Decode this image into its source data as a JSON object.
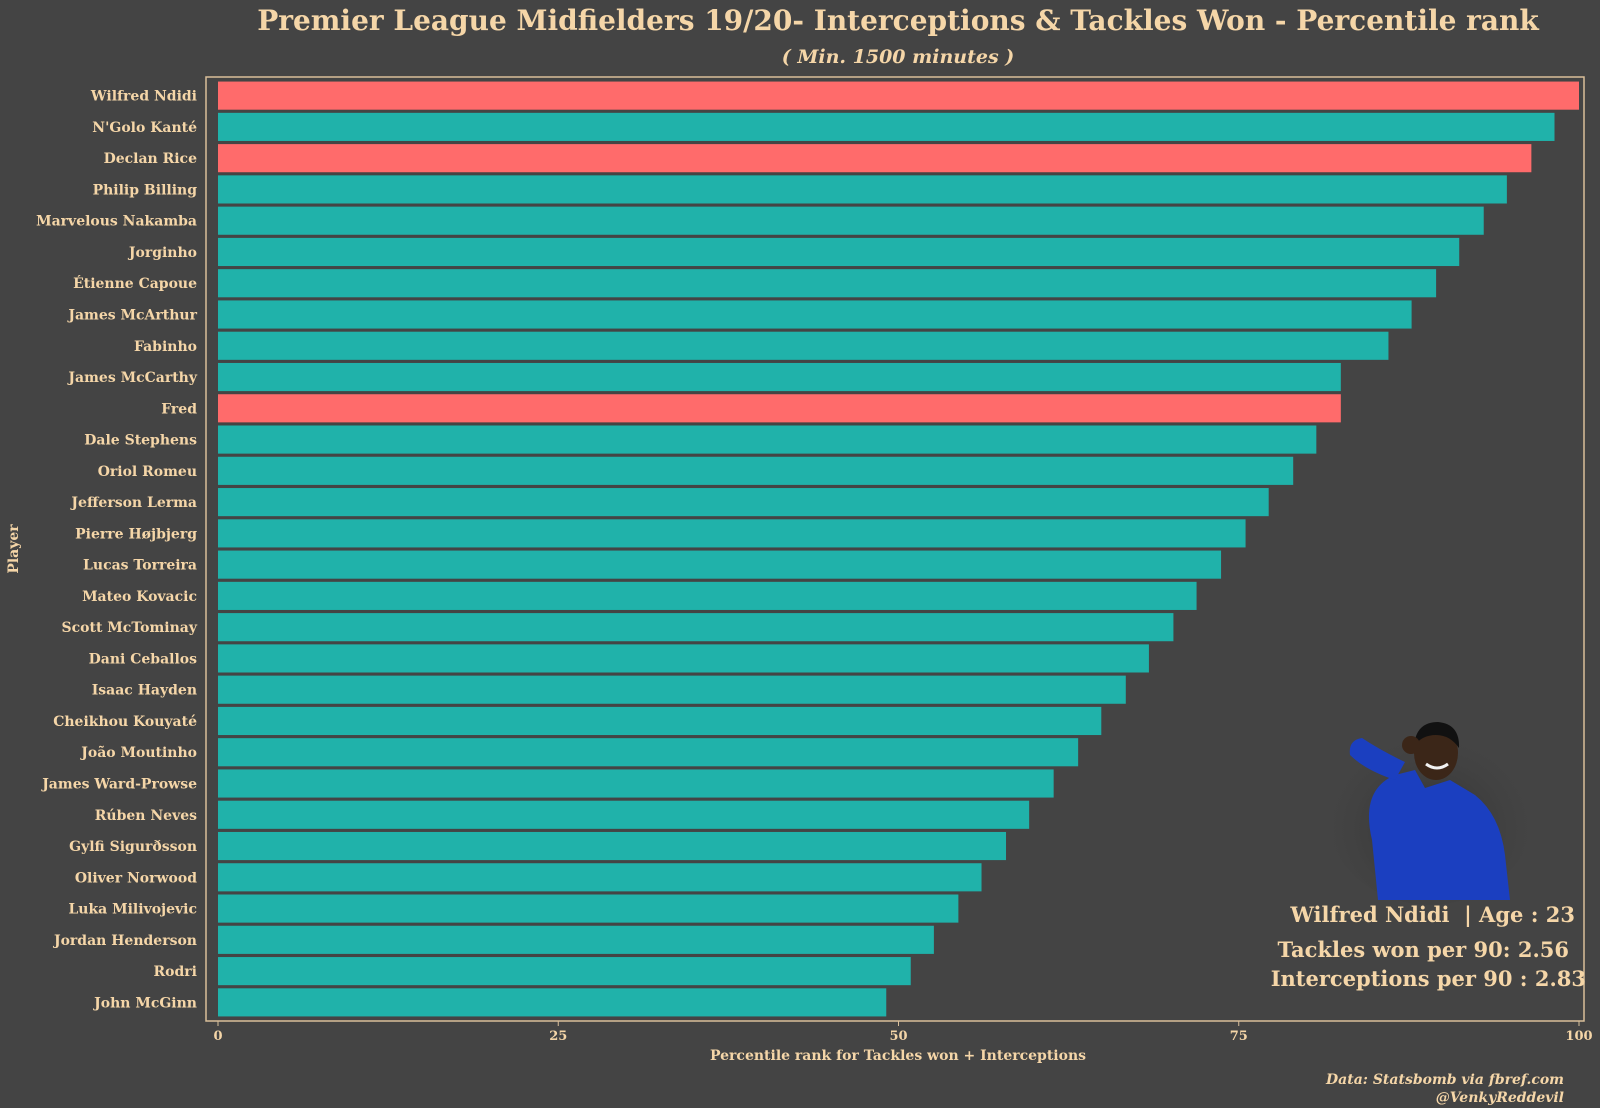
{
  "chart_data": {
    "type": "bar",
    "orientation": "horizontal",
    "title": "Premier League Midfielders 19/20- Interceptions & Tackles Won - Percentile rank",
    "subtitle": "( Min. 1500 minutes )",
    "xlabel": "Percentile rank for Tackles won + Interceptions",
    "ylabel": "Player",
    "xlim": [
      0,
      100
    ],
    "xticks": [
      "0",
      "25",
      "50",
      "75",
      "100"
    ],
    "grid": false,
    "categories": [
      "Wilfred Ndidi",
      "N'Golo Kanté",
      "Declan Rice",
      "Philip Billing",
      "Marvelous Nakamba",
      "Jorginho",
      "Étienne Capoue",
      "James McArthur",
      "Fabinho",
      "James McCarthy",
      "Fred",
      "Dale Stephens",
      "Oriol Romeu",
      "Jefferson Lerma",
      "Pierre Højbjerg",
      "Lucas Torreira",
      "Mateo Kovacic",
      "Scott McTominay",
      "Dani Ceballos",
      "Isaac Hayden",
      "Cheikhou Kouyaté",
      "João Moutinho",
      "James Ward-Prowse",
      "Rúben Neves",
      "Gylfi Sigurðsson",
      "Oliver Norwood",
      "Luka Milivojevic",
      "Jordan Henderson",
      "Rodri",
      "John McGinn"
    ],
    "values": [
      100,
      98.2,
      96.5,
      94.7,
      93,
      91.2,
      89.5,
      87.7,
      86,
      82.5,
      82.5,
      80.7,
      79,
      77.2,
      75.5,
      73.7,
      71.9,
      70.2,
      68.4,
      66.7,
      64.9,
      63.2,
      61.4,
      59.6,
      57.9,
      56.1,
      54.4,
      52.6,
      50.9,
      49.1
    ],
    "highlighted": [
      "Wilfred Ndidi",
      "Declan Rice",
      "Fred"
    ],
    "colors": {
      "default": "#20b2aa",
      "highlight": "#ff6b6b",
      "background": "#444444",
      "text": "#f5d6a8",
      "frame": "#d9bf9a"
    }
  },
  "player_card": {
    "name_age": "Wilfred Ndidi  | Age : 23",
    "tackles": "Tackles won per 90: 2.56",
    "interceptions": "Interceptions per 90 : 2.83"
  },
  "caption": {
    "source": "Data: Statsbomb via fbref.com",
    "handle": "@VenkyReddevil"
  }
}
